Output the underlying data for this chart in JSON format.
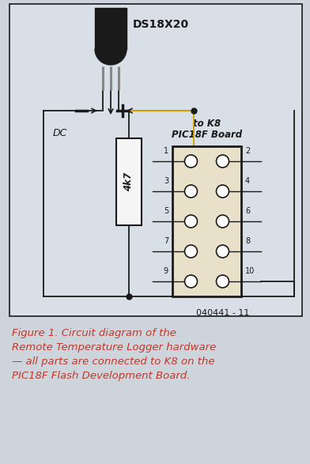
{
  "bg_color": "#cdd4db",
  "diagram_bg": "#d8dfe6",
  "title": "DS18X20",
  "caption_line1": "Figure 1. Circuit diagram of the",
  "caption_line2": "Remote Temperature Logger hardware",
  "caption_line3": "— all parts are connected to K8 on the",
  "caption_line4": "PIC18F Flash Development Board.",
  "caption_color": "#c0392b",
  "caption_fontsize": 9.5,
  "ref_label": "040441 - 11",
  "connector_label_top": "to K8",
  "connector_label_bot": "PIC18F Board",
  "resistor_label": "4k7",
  "dc_label": "DC",
  "pin_numbers_left": [
    "1",
    "3",
    "5",
    "7",
    "9"
  ],
  "pin_numbers_right": [
    "2",
    "4",
    "6",
    "8",
    "10"
  ],
  "line_color": "#1a1a1a",
  "connector_fill": "#e8e0c8",
  "resistor_fill": "#f5f5f5",
  "wire_color_red": "#c8a000",
  "wire_color_black": "#1a1a1a",
  "watermark_color": "#bcc4cc"
}
